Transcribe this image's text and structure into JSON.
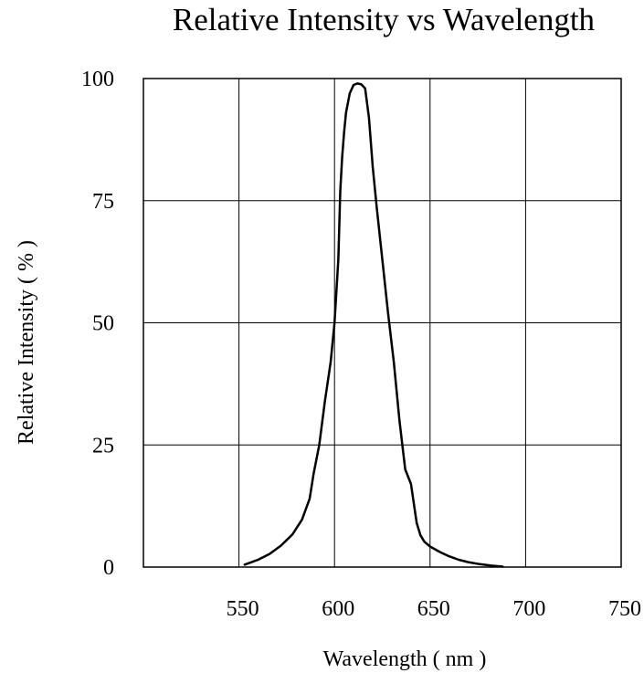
{
  "chart_data": {
    "type": "line",
    "title": "Relative Intensity vs Wavelength",
    "xlabel": "Wavelength ( nm )",
    "ylabel": "Relative Intensity ( % )",
    "xlim": [
      500,
      750
    ],
    "ylim": [
      0,
      100
    ],
    "x_ticks": [
      550,
      600,
      650,
      700,
      750
    ],
    "x_tick_labels": [
      "550",
      "600",
      "650",
      "700",
      "750"
    ],
    "y_ticks": [
      0,
      25,
      50,
      75,
      100
    ],
    "y_tick_labels": [
      "0",
      "25",
      "50",
      "75",
      "100"
    ],
    "x_gridlines": [
      550,
      600,
      650,
      700
    ],
    "y_gridlines": [
      25,
      50,
      75
    ],
    "grid": true,
    "legend": "none",
    "series": [
      {
        "x": [
          553,
          560,
          566,
          572,
          578,
          583,
          587,
          589,
          592,
          595,
          598,
          600,
          602,
          603,
          604,
          605,
          606,
          608,
          610,
          612,
          614,
          616,
          618,
          620,
          622,
          625,
          628,
          631,
          634,
          637,
          640,
          643,
          645,
          647,
          650,
          655,
          660,
          665,
          670,
          676,
          682,
          688
        ],
        "values": [
          0.5,
          1.5,
          2.7,
          4.4,
          6.7,
          9.7,
          14,
          19,
          25,
          34,
          42,
          50,
          63,
          77,
          84,
          89,
          93,
          97,
          98.7,
          99,
          98.8,
          98,
          92,
          82,
          74,
          63,
          52,
          42,
          30,
          20,
          17,
          9,
          6.5,
          5.2,
          4.2,
          3.1,
          2.2,
          1.5,
          1.0,
          0.6,
          0.3,
          0.1
        ]
      }
    ]
  }
}
